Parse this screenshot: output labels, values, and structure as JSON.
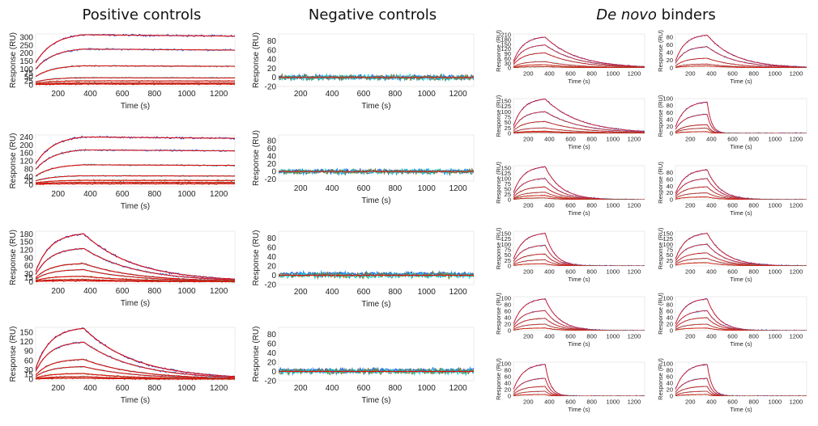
{
  "headings": {
    "positive": "Positive controls",
    "negative": "Negative controls",
    "denovo_italic": "De novo",
    "denovo_rest": " binders"
  },
  "chart_data": [
    {
      "id": "pos1",
      "type": "line",
      "xlabel": "Time (s)",
      "ylabel": "Response (RU)",
      "xlim": [
        60,
        1300
      ],
      "ylim": [
        -10,
        320
      ],
      "xticks": [
        200,
        400,
        600,
        800,
        1000,
        1200
      ],
      "yticks": [
        0,
        25,
        50,
        75,
        100,
        150,
        200,
        250,
        300
      ],
      "kind": "steady",
      "assoc_end": 360,
      "curve_values": [
        315,
        225,
        120,
        45,
        25,
        12,
        5
      ]
    },
    {
      "id": "pos2",
      "type": "line",
      "xlabel": "Time (s)",
      "ylabel": "Response (RU)",
      "xlim": [
        60,
        1300
      ],
      "ylim": [
        -10,
        250
      ],
      "xticks": [
        200,
        400,
        600,
        800,
        1000,
        1200
      ],
      "yticks": [
        0,
        20,
        40,
        80,
        120,
        160,
        200,
        240
      ],
      "kind": "steady",
      "assoc_end": 360,
      "curve_values": [
        240,
        175,
        100,
        45,
        22,
        12,
        5
      ]
    },
    {
      "id": "pos3",
      "type": "line",
      "xlabel": "Time (s)",
      "ylabel": "Response (RU)",
      "xlim": [
        60,
        1300
      ],
      "ylim": [
        -8,
        190
      ],
      "xticks": [
        200,
        400,
        600,
        800,
        1000,
        1200
      ],
      "yticks": [
        0,
        15,
        30,
        60,
        90,
        120,
        150,
        180
      ],
      "kind": "kinetic",
      "assoc_end": 360,
      "tau": 320,
      "curve_values": [
        180,
        125,
        68,
        45,
        20,
        8,
        3
      ]
    },
    {
      "id": "pos4",
      "type": "line",
      "xlabel": "Time (s)",
      "ylabel": "Response (RU)",
      "xlim": [
        60,
        1300
      ],
      "ylim": [
        -5,
        165
      ],
      "xticks": [
        200,
        400,
        600,
        800,
        1000,
        1200
      ],
      "yticks": [
        0,
        15,
        30,
        60,
        90,
        120,
        150
      ],
      "kind": "kinetic",
      "assoc_end": 360,
      "tau": 320,
      "curve_values": [
        162,
        118,
        63,
        40,
        18,
        8,
        3
      ]
    },
    {
      "id": "neg1",
      "type": "line",
      "xlabel": "Time (s)",
      "ylabel": "Response (RU)",
      "xlim": [
        60,
        1300
      ],
      "ylim": [
        -20,
        95
      ],
      "xticks": [
        200,
        400,
        600,
        800,
        1000,
        1200
      ],
      "yticks": [
        -20,
        0,
        20,
        40,
        60,
        80
      ],
      "kind": "flat",
      "curve_values": [
        2,
        0,
        -2,
        0,
        0
      ]
    },
    {
      "id": "neg2",
      "type": "line",
      "xlabel": "Time (s)",
      "ylabel": "Response (RU)",
      "xlim": [
        60,
        1300
      ],
      "ylim": [
        -25,
        95
      ],
      "xticks": [
        200,
        400,
        600,
        800,
        1000,
        1200
      ],
      "yticks": [
        -20,
        0,
        20,
        40,
        60,
        80
      ],
      "kind": "flat",
      "curve_values": [
        3,
        0,
        -3,
        0,
        0
      ]
    },
    {
      "id": "neg3",
      "type": "line",
      "xlabel": "Time (s)",
      "ylabel": "Response (RU)",
      "xlim": [
        60,
        1300
      ],
      "ylim": [
        -20,
        95
      ],
      "xticks": [
        200,
        400,
        600,
        800,
        1000,
        1200
      ],
      "yticks": [
        -20,
        0,
        20,
        40,
        60,
        80
      ],
      "kind": "flat",
      "curve_values": [
        8,
        5,
        2,
        0,
        0
      ]
    },
    {
      "id": "neg4",
      "type": "line",
      "xlabel": "Time (s)",
      "ylabel": "Response (RU)",
      "xlim": [
        60,
        1300
      ],
      "ylim": [
        -20,
        95
      ],
      "xticks": [
        200,
        400,
        600,
        800,
        1000,
        1200
      ],
      "yticks": [
        -20,
        0,
        20,
        40,
        60,
        80
      ],
      "kind": "flat",
      "curve_values": [
        6,
        4,
        2,
        0,
        0
      ]
    },
    {
      "id": "dn1",
      "type": "line",
      "xlabel": "Time (s)",
      "ylabel": "Response (RU)",
      "xlim": [
        60,
        1300
      ],
      "ylim": [
        0,
        215
      ],
      "xticks": [
        200,
        400,
        600,
        800,
        1000,
        1200
      ],
      "yticks": [
        0,
        30,
        60,
        90,
        120,
        150,
        180,
        210
      ],
      "kind": "kinetic",
      "assoc_end": 360,
      "tau": 300,
      "curve_values": [
        195,
        145,
        95,
        40,
        20,
        8
      ]
    },
    {
      "id": "dn2",
      "type": "line",
      "xlabel": "Time (s)",
      "ylabel": "Response (RU)",
      "xlim": [
        60,
        1300
      ],
      "ylim": [
        0,
        88
      ],
      "xticks": [
        200,
        400,
        600,
        800,
        1000,
        1200
      ],
      "yticks": [
        0,
        20,
        40,
        60,
        80
      ],
      "kind": "kinetic",
      "assoc_end": 360,
      "tau": 260,
      "curve_values": [
        85,
        55,
        25,
        10,
        5
      ]
    },
    {
      "id": "dn3",
      "type": "line",
      "xlabel": "Time (s)",
      "ylabel": "Response (RU)",
      "xlim": [
        60,
        1300
      ],
      "ylim": [
        0,
        160
      ],
      "xticks": [
        200,
        400,
        600,
        800,
        1000,
        1200
      ],
      "yticks": [
        0,
        25,
        50,
        75,
        100,
        125,
        150
      ],
      "kind": "kinetic",
      "assoc_end": 360,
      "tau": 330,
      "curve_values": [
        158,
        100,
        55,
        25,
        10,
        5
      ]
    },
    {
      "id": "dn4",
      "type": "line",
      "xlabel": "Time (s)",
      "ylabel": "Response (RU)",
      "xlim": [
        60,
        1300
      ],
      "ylim": [
        0,
        100
      ],
      "xticks": [
        200,
        400,
        600,
        800,
        1000,
        1200
      ],
      "yticks": [
        0,
        20,
        40,
        60,
        80,
        100
      ],
      "kind": "kinetic",
      "assoc_end": 360,
      "tau": 40,
      "curve_values": [
        90,
        55,
        25,
        15,
        5
      ]
    },
    {
      "id": "dn5",
      "type": "line",
      "xlabel": "Time (s)",
      "ylabel": "Response (RU)",
      "xlim": [
        60,
        1300
      ],
      "ylim": [
        0,
        160
      ],
      "xticks": [
        200,
        400,
        600,
        800,
        1000,
        1200
      ],
      "yticks": [
        0,
        25,
        50,
        75,
        100,
        125,
        150
      ],
      "kind": "kinetic",
      "assoc_end": 360,
      "tau": 150,
      "curve_values": [
        155,
        100,
        60,
        35,
        20,
        8
      ]
    },
    {
      "id": "dn6",
      "type": "line",
      "xlabel": "Time (s)",
      "ylabel": "Response (RU)",
      "xlim": [
        60,
        1300
      ],
      "ylim": [
        0,
        100
      ],
      "xticks": [
        200,
        400,
        600,
        800,
        1000,
        1200
      ],
      "yticks": [
        0,
        20,
        40,
        60,
        80
      ],
      "kind": "kinetic",
      "assoc_end": 360,
      "tau": 120,
      "curve_values": [
        88,
        62,
        38,
        20,
        8
      ]
    },
    {
      "id": "dn7",
      "type": "line",
      "xlabel": "Time (s)",
      "ylabel": "Response (RU)",
      "xlim": [
        60,
        1300
      ],
      "ylim": [
        0,
        160
      ],
      "xticks": [
        200,
        400,
        600,
        800,
        1000,
        1200
      ],
      "yticks": [
        0,
        25,
        50,
        75,
        100,
        125,
        150
      ],
      "kind": "kinetic",
      "assoc_end": 360,
      "tau": 90,
      "curve_values": [
        150,
        95,
        55,
        28,
        10
      ]
    },
    {
      "id": "dn8",
      "type": "line",
      "xlabel": "Time (s)",
      "ylabel": "Response (RU)",
      "xlim": [
        60,
        1300
      ],
      "ylim": [
        0,
        160
      ],
      "xticks": [
        200,
        400,
        600,
        800,
        1000,
        1200
      ],
      "yticks": [
        0,
        25,
        50,
        75,
        100,
        125,
        150
      ],
      "kind": "kinetic",
      "assoc_end": 360,
      "tau": 170,
      "curve_values": [
        150,
        100,
        60,
        35,
        15
      ]
    },
    {
      "id": "dn9",
      "type": "line",
      "xlabel": "Time (s)",
      "ylabel": "Response (RU)",
      "xlim": [
        60,
        1300
      ],
      "ylim": [
        0,
        105
      ],
      "xticks": [
        200,
        400,
        600,
        800,
        1000,
        1200
      ],
      "yticks": [
        0,
        20,
        40,
        60,
        80,
        100
      ],
      "kind": "kinetic",
      "assoc_end": 360,
      "tau": 130,
      "curve_values": [
        98,
        62,
        38,
        20,
        8
      ]
    },
    {
      "id": "dn10",
      "type": "line",
      "xlabel": "Time (s)",
      "ylabel": "Response (RU)",
      "xlim": [
        60,
        1300
      ],
      "ylim": [
        0,
        105
      ],
      "xticks": [
        200,
        400,
        600,
        800,
        1000,
        1200
      ],
      "yticks": [
        0,
        20,
        40,
        60,
        80,
        100
      ],
      "kind": "kinetic",
      "assoc_end": 360,
      "tau": 110,
      "curve_values": [
        98,
        62,
        40,
        20,
        8
      ]
    },
    {
      "id": "dn11",
      "type": "line",
      "xlabel": "Time (s)",
      "ylabel": "Response (RU)",
      "xlim": [
        60,
        1300
      ],
      "ylim": [
        0,
        105
      ],
      "xticks": [
        200,
        400,
        600,
        800,
        1000,
        1200
      ],
      "yticks": [
        0,
        20,
        40,
        60,
        80,
        100
      ],
      "kind": "kinetic",
      "assoc_end": 360,
      "tau": 50,
      "curve_values": [
        98,
        55,
        30,
        15,
        5
      ]
    },
    {
      "id": "dn12",
      "type": "line",
      "xlabel": "Time (s)",
      "ylabel": "Response (RU)",
      "xlim": [
        60,
        1300
      ],
      "ylim": [
        0,
        105
      ],
      "xticks": [
        200,
        400,
        600,
        800,
        1000,
        1200
      ],
      "yticks": [
        0,
        20,
        40,
        60,
        80,
        100
      ],
      "kind": "kinetic",
      "assoc_end": 360,
      "tau": 45,
      "curve_values": [
        98,
        55,
        30,
        15,
        5
      ]
    }
  ],
  "series_colors": [
    "#1f3fd6",
    "#1e90ff",
    "#3a8a8a",
    "#20d0d0",
    "#7a7a3a",
    "#1f8f3f",
    "#8b4513"
  ],
  "fit_color": "#e01010"
}
